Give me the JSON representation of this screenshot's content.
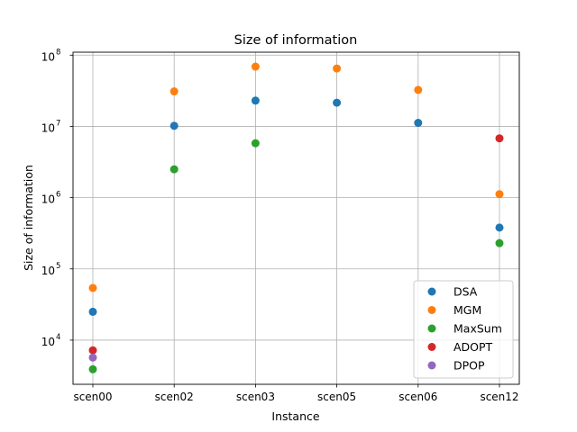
{
  "chart_data": {
    "type": "scatter",
    "title": "Size of information",
    "xlabel": "Instance",
    "ylabel": "Size of information",
    "categories": [
      "scen00",
      "scen02",
      "scen03",
      "scen05",
      "scen06",
      "scen12"
    ],
    "yscale": "log",
    "ylim": [
      2400,
      110000000
    ],
    "yticks": [
      {
        "value": 10000,
        "base": "10",
        "exp": "4"
      },
      {
        "value": 100000,
        "base": "10",
        "exp": "5"
      },
      {
        "value": 1000000,
        "base": "10",
        "exp": "6"
      },
      {
        "value": 10000000,
        "base": "10",
        "exp": "7"
      },
      {
        "value": 100000000,
        "base": "10",
        "exp": "8"
      }
    ],
    "grid": true,
    "legend_position": "lower-right",
    "series": [
      {
        "name": "DSA",
        "color": "#1f77b4",
        "values": [
          25000,
          10200000,
          23000000,
          21500000,
          11200000,
          380000
        ]
      },
      {
        "name": "MGM",
        "color": "#ff7f0e",
        "values": [
          54000,
          31000000,
          69000000,
          65000000,
          32500000,
          1120000
        ]
      },
      {
        "name": "MaxSum",
        "color": "#2ca02c",
        "values": [
          3900,
          2500000,
          5800000,
          null,
          null,
          230000
        ]
      },
      {
        "name": "ADOPT",
        "color": "#d62728",
        "values": [
          7200,
          null,
          null,
          null,
          null,
          6800000
        ]
      },
      {
        "name": "DPOP",
        "color": "#9467bd",
        "values": [
          5700,
          null,
          null,
          null,
          null,
          null
        ]
      }
    ]
  }
}
